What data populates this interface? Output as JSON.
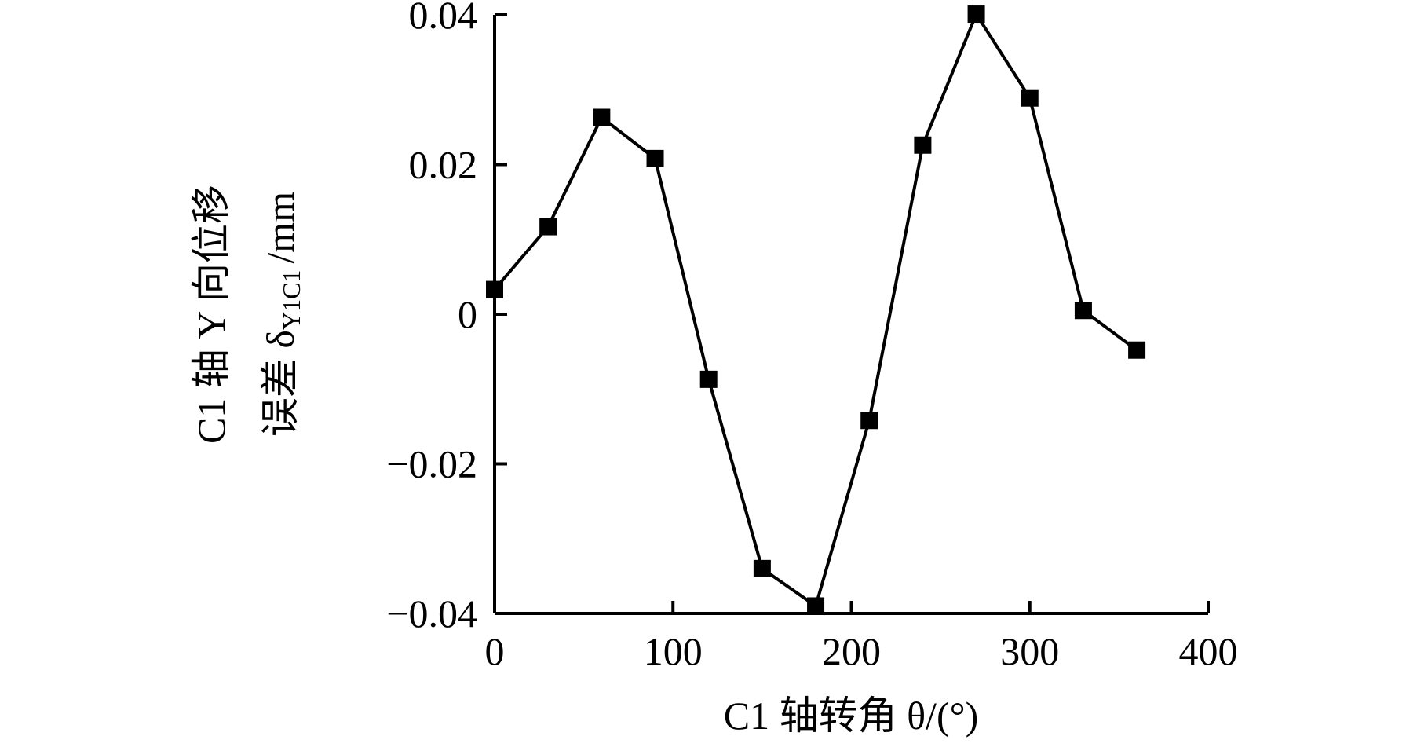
{
  "chart_data": {
    "type": "line",
    "xlabel": "C1 轴转角 θ/(°)",
    "ylabel": {
      "line1": "C1 轴 Y 向位移",
      "line2": "误差 δ",
      "sub": "Y1C1",
      "unit": "/mm"
    },
    "x": [
      0,
      30,
      60,
      90,
      120,
      150,
      180,
      210,
      240,
      270,
      300,
      330,
      360
    ],
    "series": [
      {
        "color": "#000000",
        "values": [
          0.0033,
          0.0117,
          0.0263,
          0.0208,
          -0.0087,
          -0.034,
          -0.039,
          -0.0142,
          0.0226,
          0.0401,
          0.0289,
          0.0005,
          -0.0048
        ]
      }
    ],
    "xlim": [
      0,
      400
    ],
    "ylim": [
      -0.04,
      0.04
    ],
    "xticks": [
      0,
      100,
      200,
      300,
      400
    ],
    "yticks": [
      {
        "value": -0.04,
        "label": "−0.04"
      },
      {
        "value": -0.02,
        "label": "−0.02"
      },
      0,
      0.02,
      0.04
    ],
    "grid": false
  }
}
